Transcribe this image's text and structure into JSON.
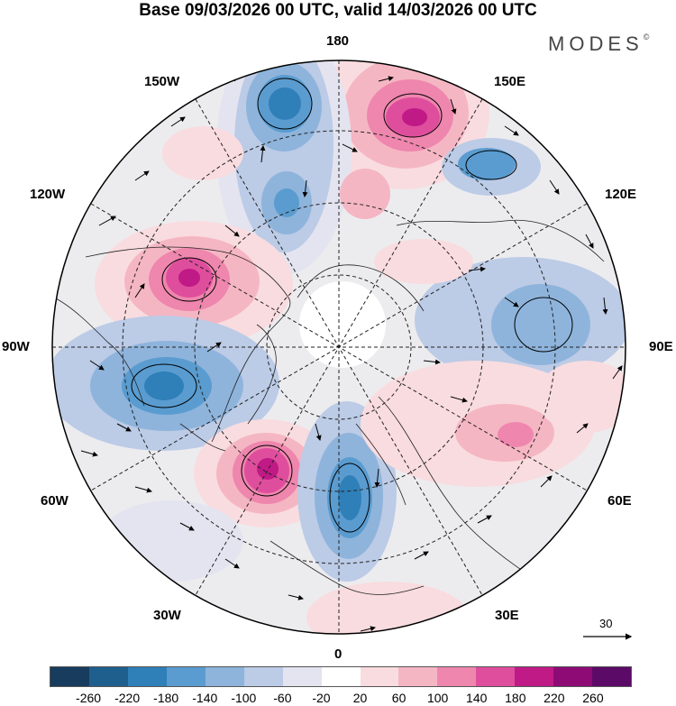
{
  "title": "Base 09/03/2026 00 UTC, valid 14/03/2026 00 UTC",
  "logo": "MODES",
  "logo_mark": "©",
  "longitude_labels": {
    "n180": "180",
    "w150": "150W",
    "e150": "150E",
    "w120": "120W",
    "e120": "120E",
    "w90": "90W",
    "e90": "90E",
    "w60": "60W",
    "e60": "60E",
    "w30": "30W",
    "e30": "30E",
    "s0": "0"
  },
  "reference_vector": "30",
  "colorbar": {
    "colors": [
      "#173c5e",
      "#1f5f8e",
      "#2f7fb8",
      "#5a9cd0",
      "#8eb4dc",
      "#bccbe6",
      "#e4e4f0",
      "#ffffff",
      "#f9dcdf",
      "#f5b6c3",
      "#ee86ad",
      "#df4e9d",
      "#c01a86",
      "#8e0b76",
      "#5c0a68"
    ],
    "labels": [
      "-260",
      "-220",
      "-180",
      "-140",
      "-100",
      "-60",
      "-20",
      "20",
      "60",
      "100",
      "140",
      "180",
      "220",
      "260"
    ]
  }
}
